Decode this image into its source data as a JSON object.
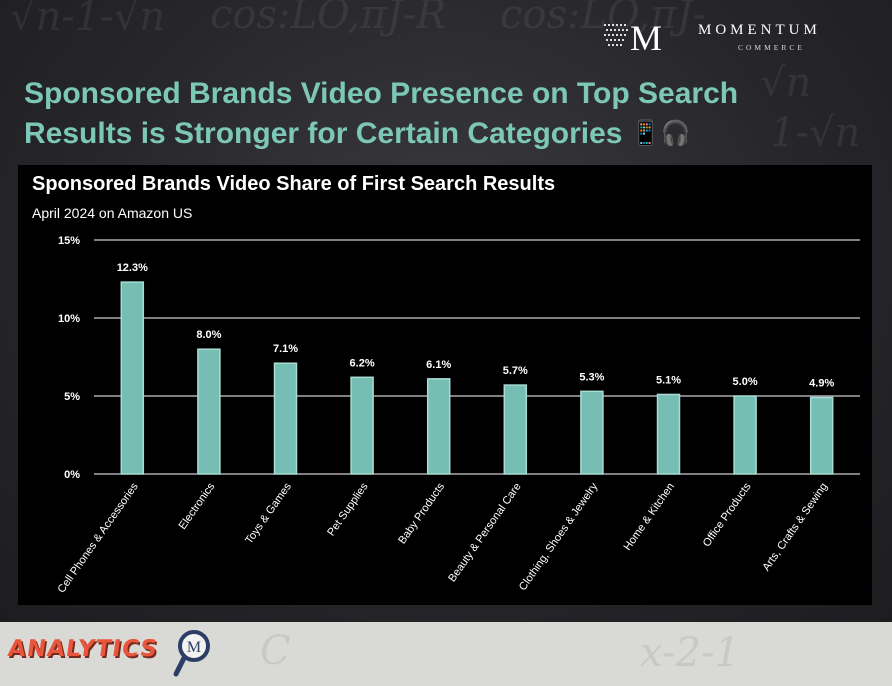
{
  "brand": {
    "name": "MOMENTUM",
    "sub": "COMMERCE",
    "monogram": "M"
  },
  "headline": {
    "line1": "Sponsored Brands Video Presence on Top Search",
    "line2": "Results is Stronger for Certain Categories",
    "emoji": "📱🎧"
  },
  "colors": {
    "headline": "#7cc7b8",
    "bar_fill": "#76bdb4",
    "bar_edge": "#a9dcd4",
    "panel": "#000000",
    "analytics": "#e8563e"
  },
  "chart_data": {
    "type": "bar",
    "title": "Sponsored Brands Video Share of First Search Results",
    "subtitle": "April 2024 on Amazon US",
    "categories": [
      "Cell Phones & Accessories",
      "Electronics",
      "Toys & Games",
      "Pet Supplies",
      "Baby Products",
      "Beauty & Personal Care",
      "Clothing, Shoes & Jewelry",
      "Home & Kitchen",
      "Office Products",
      "Arts, Crafts & Sewing"
    ],
    "values": [
      12.3,
      8.0,
      7.1,
      6.2,
      6.1,
      5.7,
      5.3,
      5.1,
      5.0,
      4.9
    ],
    "data_labels": [
      "12.3%",
      "8.0%",
      "7.1%",
      "6.2%",
      "6.1%",
      "5.7%",
      "5.3%",
      "5.1%",
      "5.0%",
      "4.9%"
    ],
    "yticks": [
      0,
      5,
      10,
      15
    ],
    "ytick_labels": [
      "0%",
      "5%",
      "10%",
      "15%"
    ],
    "ylim": [
      0,
      15
    ],
    "grid": true,
    "legend": "none"
  },
  "footer": {
    "label": "ANALYTICS",
    "badge_letter": "M"
  }
}
